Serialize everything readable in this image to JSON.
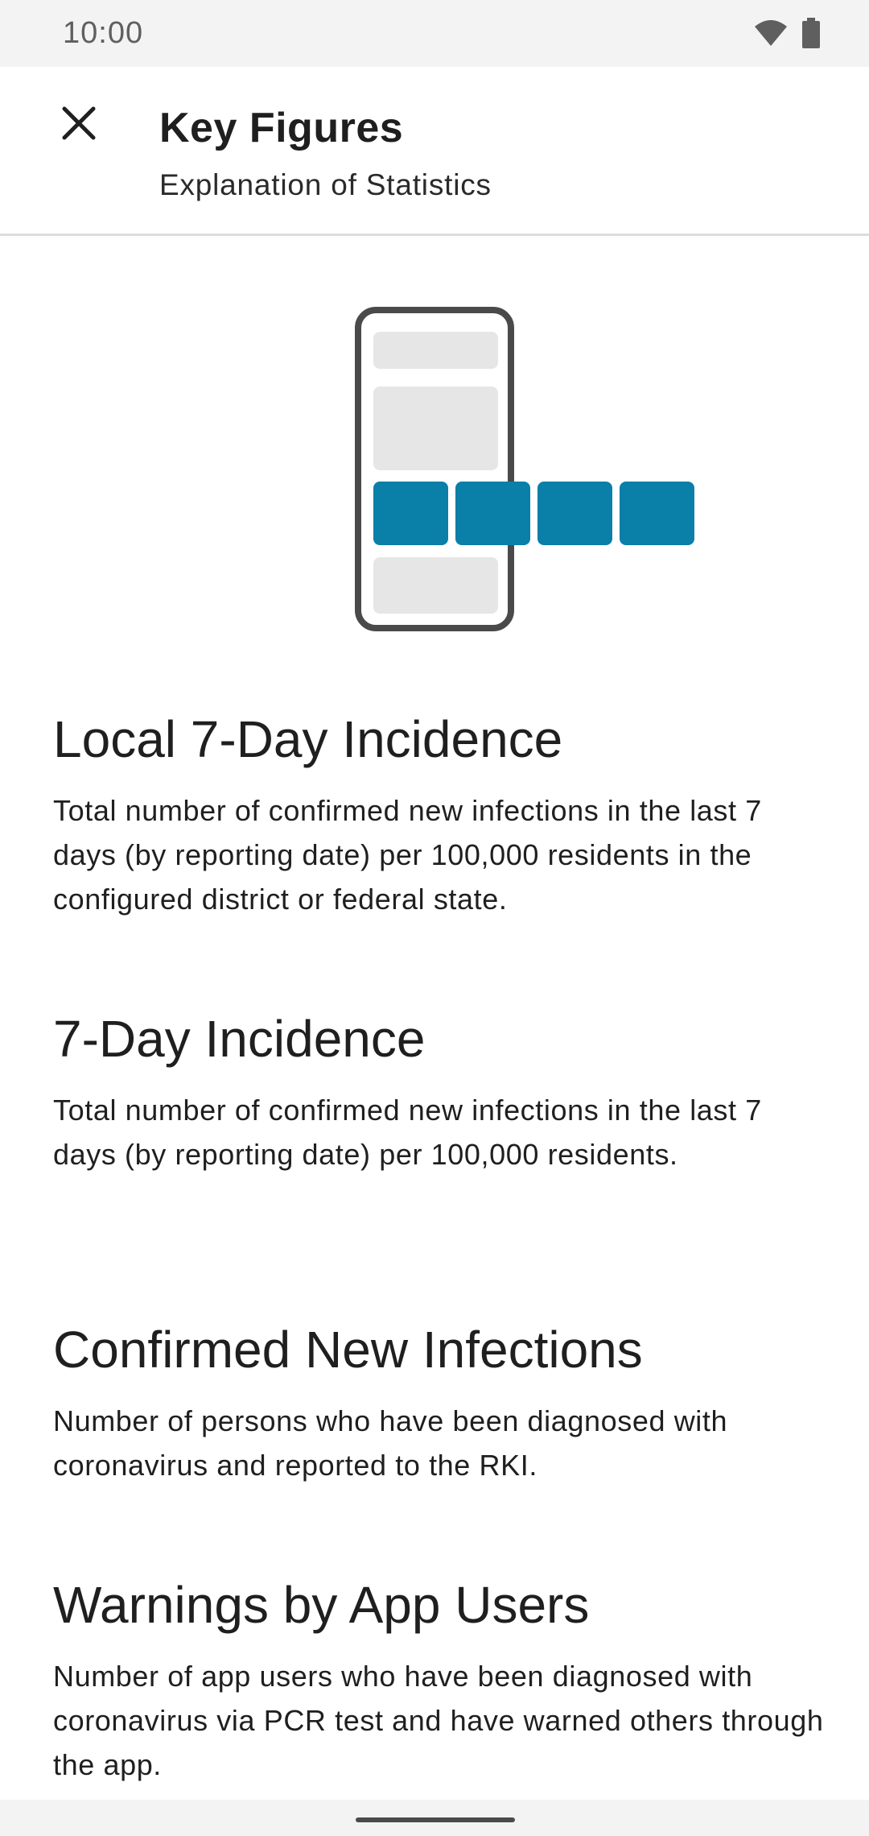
{
  "status_bar": {
    "time": "10:00",
    "icons": [
      "wifi-icon",
      "battery-icon"
    ]
  },
  "app_bar": {
    "close_icon": "close-icon",
    "title": "Key Figures",
    "subtitle": "Explanation of Statistics"
  },
  "illustration": {
    "icon": "phone-statistics-illustration",
    "frame_color": "#4a4a4a",
    "placeholder_color": "#e6e6e6",
    "accent_color": "#0a7fa8",
    "highlight_tiles": 4
  },
  "sections": [
    {
      "heading": "Local 7-Day Incidence",
      "text": "Total number of confirmed new infections in the last 7 days (by reporting date) per 100,000 residents in the configured district or federal state."
    },
    {
      "heading": "7-Day Incidence",
      "text": "Total number of confirmed new infections in the last 7 days (by reporting date) per 100,000 residents."
    },
    {
      "heading": "Confirmed New Infections",
      "text": "Number of persons who have been diagnosed with coronavirus and reported to the RKI."
    },
    {
      "heading": "Warnings by App Users",
      "text": "Number of app users who have been diagnosed with coronavirus via PCR test and have warned others through the app."
    }
  ]
}
